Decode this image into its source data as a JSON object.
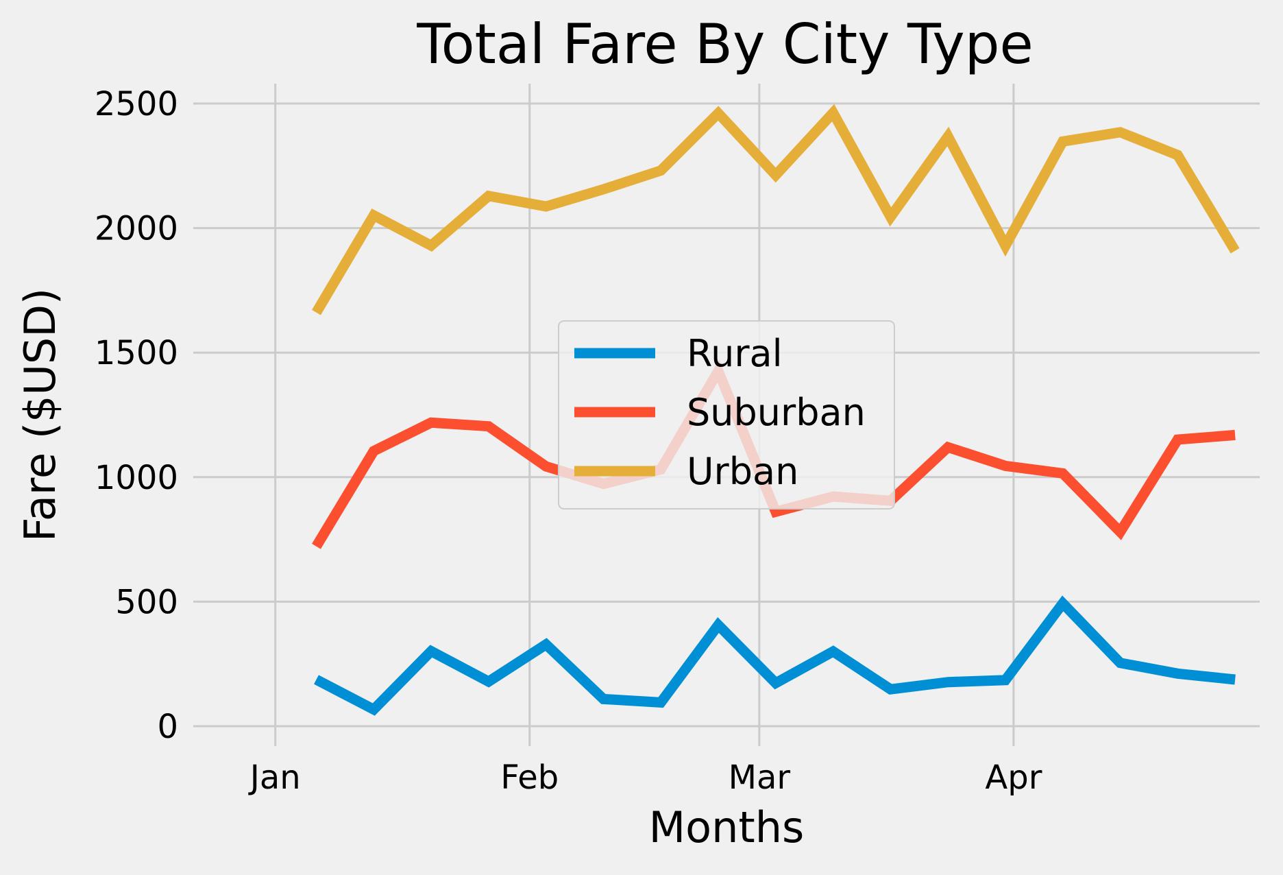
{
  "chart_data": {
    "type": "line",
    "title": "Total Fare By City Type",
    "xlabel": "Months",
    "ylabel": "Fare ($USD)",
    "x": [
      "2019-01-06",
      "2019-01-13",
      "2019-01-20",
      "2019-01-27",
      "2019-02-03",
      "2019-02-10",
      "2019-02-17",
      "2019-02-24",
      "2019-03-03",
      "2019-03-10",
      "2019-03-17",
      "2019-03-24",
      "2019-03-31",
      "2019-04-07",
      "2019-04-14",
      "2019-04-21",
      "2019-04-28"
    ],
    "x_ticks": [
      {
        "date": "2019-01-01",
        "label": "Jan"
      },
      {
        "date": "2019-02-01",
        "label": "Feb"
      },
      {
        "date": "2019-03-01",
        "label": "Mar"
      },
      {
        "date": "2019-04-01",
        "label": "Apr"
      }
    ],
    "xlim": [
      "2018-12-22",
      "2019-05-01"
    ],
    "y_ticks": [
      0,
      500,
      1000,
      1500,
      2000,
      2500
    ],
    "ylim": [
      -80,
      2580
    ],
    "grid": true,
    "legend_position": "center",
    "series": [
      {
        "name": "Rural",
        "color": "#008fd5",
        "values": [
          187,
          67,
          301,
          179,
          328,
          109,
          95,
          406,
          173,
          300,
          148,
          177,
          185,
          493,
          254,
          211,
          187
        ]
      },
      {
        "name": "Suburban",
        "color": "#fc4f30",
        "values": [
          722,
          1105,
          1219,
          1204,
          1043,
          973,
          1031,
          1426,
          861,
          922,
          905,
          1120,
          1045,
          1015,
          780,
          1151,
          1169
        ]
      },
      {
        "name": "Urban",
        "color": "#e5ae38",
        "values": [
          1661,
          2051,
          1930,
          2129,
          2087,
          2156,
          2231,
          2461,
          2213,
          2463,
          2045,
          2368,
          1929,
          2348,
          2385,
          2293,
          1909
        ]
      }
    ]
  }
}
